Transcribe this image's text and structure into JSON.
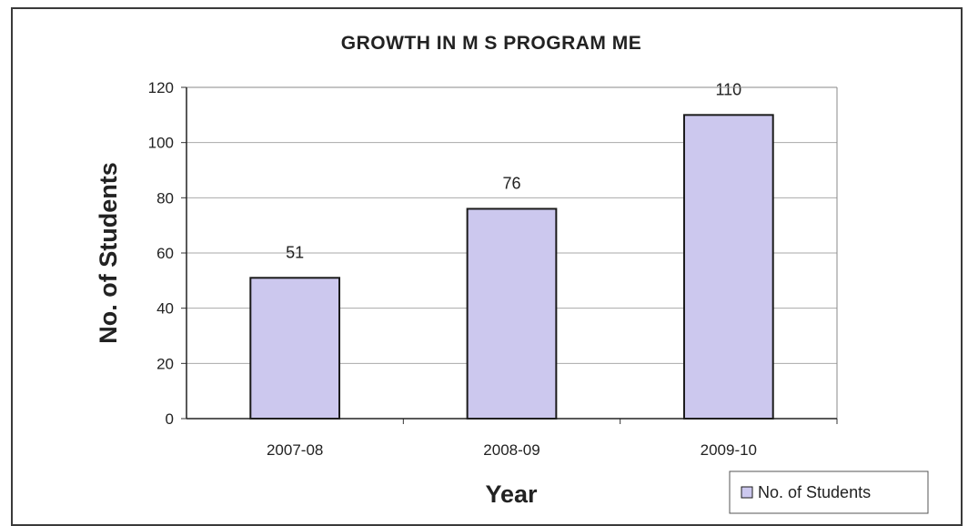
{
  "chart_data": {
    "type": "bar",
    "title": "GROWTH IN M S PROGRAM ME",
    "xlabel": "Year",
    "ylabel": "No. of Students",
    "categories": [
      "2007-08",
      "2008-09",
      "2009-10"
    ],
    "series": [
      {
        "name": "No. of Students",
        "values": [
          51,
          76,
          110
        ]
      }
    ],
    "data_labels": [
      "51",
      "76",
      "110"
    ],
    "ylim": [
      0,
      120
    ],
    "yticks": [
      0,
      20,
      40,
      60,
      80,
      100,
      120
    ],
    "ytick_labels": [
      "0",
      "20",
      "40",
      "60",
      "80",
      "100",
      "120"
    ],
    "grid": true,
    "legend": {
      "position": "bottom-right",
      "entries": [
        "No. of Students"
      ]
    },
    "colors": {
      "bar_fill": "#ccc8ee",
      "bar_stroke": "#1a1a1a",
      "gridline": "#aaaaaa"
    }
  }
}
